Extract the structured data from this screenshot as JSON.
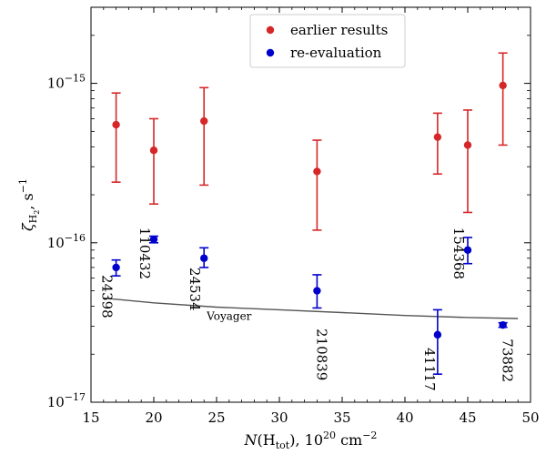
{
  "chart_data": {
    "type": "scatter",
    "title": "",
    "xlabel": "N(H_tot), 10^20 cm^-2",
    "ylabel": "ζ_H2, s^-1",
    "xlim": [
      15,
      50
    ],
    "ylim": [
      1e-17,
      3e-15
    ],
    "yscale": "log",
    "x_ticks": [
      15,
      20,
      25,
      30,
      35,
      40,
      45,
      50
    ],
    "y_ticks": [
      {
        "value": 1e-17,
        "label": "10^-17"
      },
      {
        "value": 1e-16,
        "label": "10^-16"
      },
      {
        "value": 1e-15,
        "label": "10^-15"
      }
    ],
    "grid": false,
    "legend_position": "top-center",
    "series": [
      {
        "name": "earlier results",
        "color": "#d62728",
        "points": [
          {
            "x": 17.0,
            "y": 5.5e-16,
            "ylo": 2.4e-16,
            "yhi": 8.7e-16
          },
          {
            "x": 20.0,
            "y": 3.8e-16,
            "ylo": 1.75e-16,
            "yhi": 6e-16
          },
          {
            "x": 24.0,
            "y": 5.8e-16,
            "ylo": 2.3e-16,
            "yhi": 9.4e-16
          },
          {
            "x": 33.0,
            "y": 2.8e-16,
            "ylo": 1.2e-16,
            "yhi": 4.4e-16
          },
          {
            "x": 42.6,
            "y": 4.6e-16,
            "ylo": 2.7e-16,
            "yhi": 6.5e-16
          },
          {
            "x": 45.0,
            "y": 4.1e-16,
            "ylo": 1.55e-16,
            "yhi": 6.8e-16
          },
          {
            "x": 47.8,
            "y": 9.7e-16,
            "ylo": 4.1e-16,
            "yhi": 1.55e-15
          }
        ]
      },
      {
        "name": "re-evaluation",
        "color": "#0000cc",
        "points": [
          {
            "x": 17.0,
            "y": 7e-17,
            "ylo": 6.2e-17,
            "yhi": 7.8e-17
          },
          {
            "x": 20.0,
            "y": 1.05e-16,
            "ylo": 1e-16,
            "yhi": 1.1e-16
          },
          {
            "x": 24.0,
            "y": 8e-17,
            "ylo": 7e-17,
            "yhi": 9.3e-17
          },
          {
            "x": 33.0,
            "y": 5e-17,
            "ylo": 3.9e-17,
            "yhi": 6.3e-17
          },
          {
            "x": 42.6,
            "y": 2.65e-17,
            "ylo": 1.5e-17,
            "yhi": 3.8e-17
          },
          {
            "x": 45.0,
            "y": 9e-17,
            "ylo": 7.4e-17,
            "yhi": 1.08e-16
          },
          {
            "x": 47.8,
            "y": 3.05e-17,
            "ylo": 2.95e-17,
            "yhi": 3.15e-17
          }
        ]
      }
    ],
    "model_line": {
      "name": "Voyager",
      "color": "#555555",
      "points": [
        {
          "x": 16.0,
          "y": 4.5e-17
        },
        {
          "x": 20.0,
          "y": 4.2e-17
        },
        {
          "x": 25.0,
          "y": 3.95e-17
        },
        {
          "x": 30.0,
          "y": 3.8e-17
        },
        {
          "x": 35.0,
          "y": 3.65e-17
        },
        {
          "x": 40.0,
          "y": 3.5e-17
        },
        {
          "x": 45.0,
          "y": 3.4e-17
        },
        {
          "x": 49.0,
          "y": 3.35e-17
        }
      ]
    },
    "annotations": [
      {
        "text": "24398",
        "x": 15.9,
        "y": 6.3e-17,
        "rotation": 90
      },
      {
        "text": "110432",
        "x": 18.9,
        "y": 1.25e-16,
        "rotation": 90
      },
      {
        "text": "24534",
        "x": 22.9,
        "y": 7e-17,
        "rotation": 90
      },
      {
        "text": "210839",
        "x": 33.0,
        "y": 2.9e-17,
        "rotation": 90
      },
      {
        "text": "41117",
        "x": 41.6,
        "y": 2.2e-17,
        "rotation": 90
      },
      {
        "text": "154368",
        "x": 43.9,
        "y": 1.25e-16,
        "rotation": 90
      },
      {
        "text": "73882",
        "x": 47.8,
        "y": 2.5e-17,
        "rotation": 90
      }
    ]
  }
}
